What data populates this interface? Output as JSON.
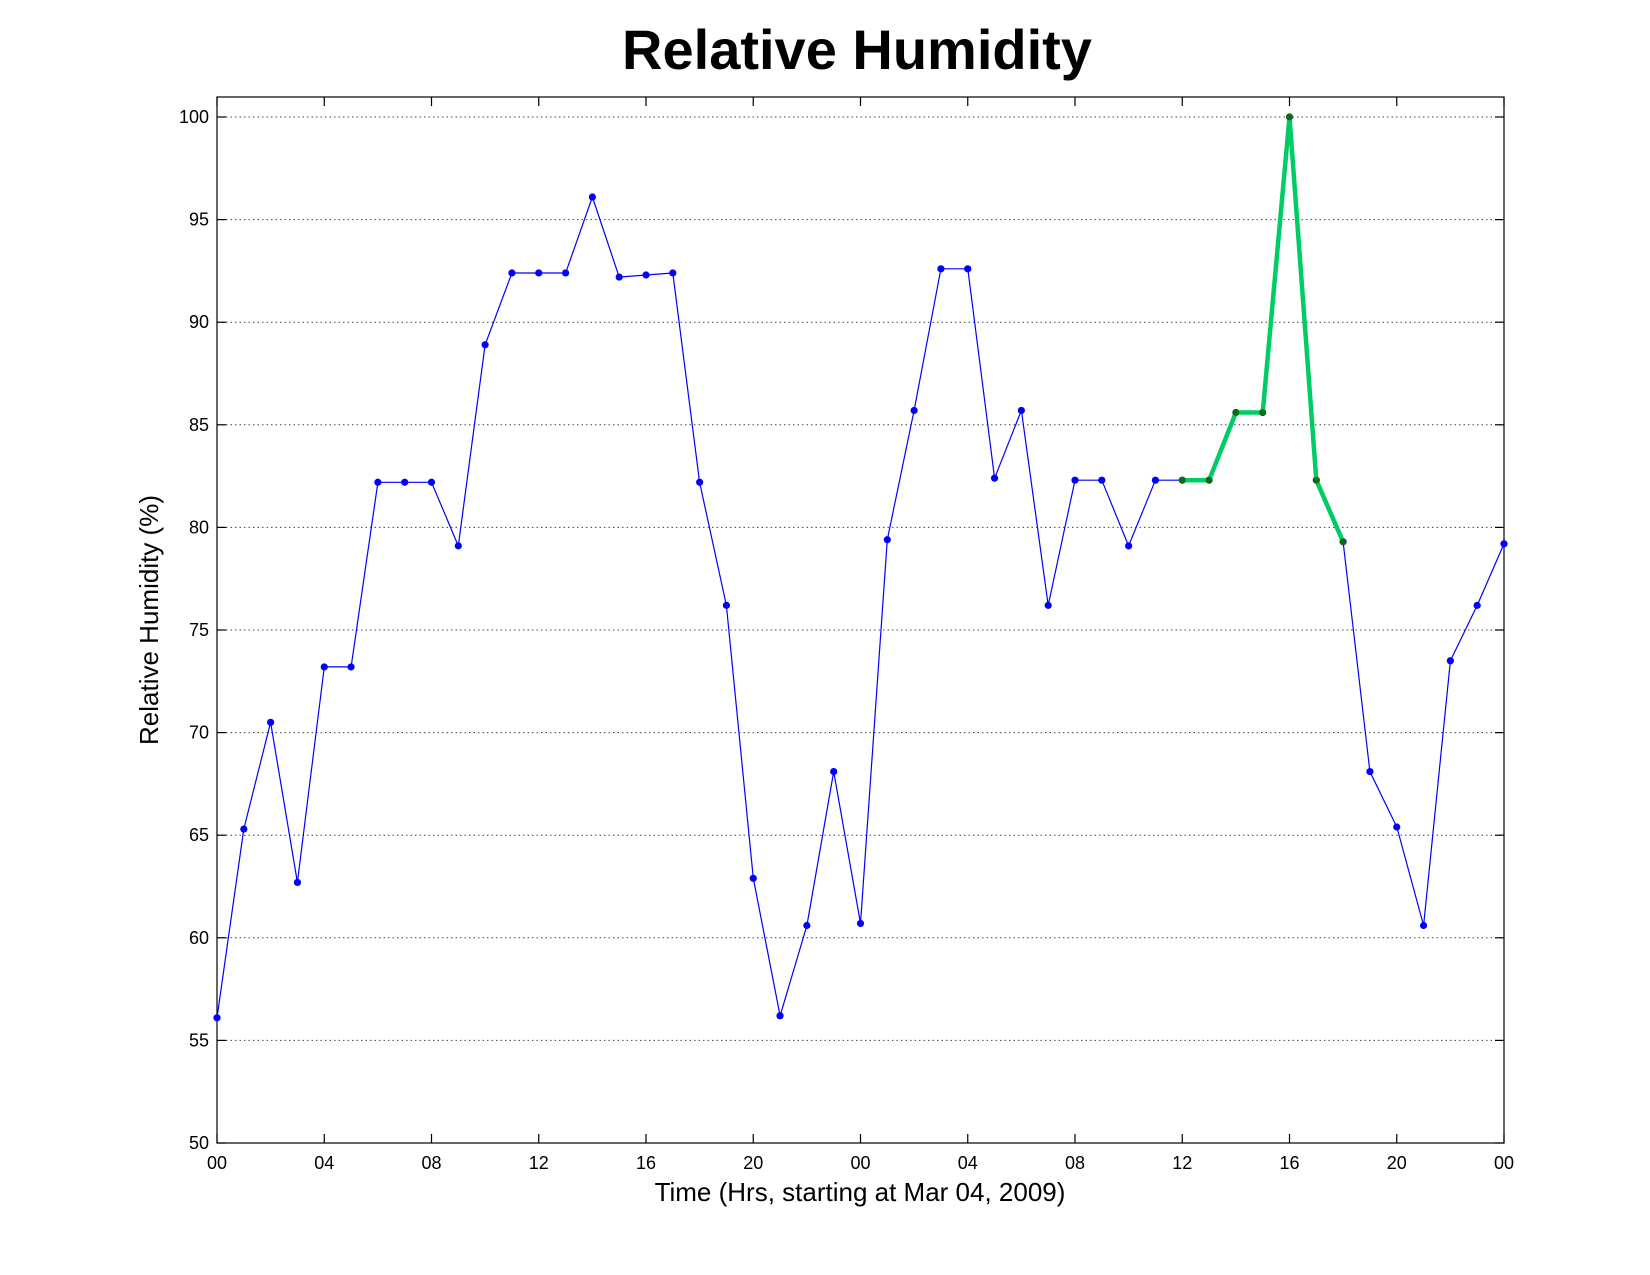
{
  "chart_data": {
    "type": "line",
    "title": "Relative Humidity",
    "xlabel": "Time (Hrs, starting at Mar 04, 2009)",
    "ylabel": "Relative Humidity (%)",
    "ylim": [
      50,
      100
    ],
    "xlim": [
      0,
      48
    ],
    "yticks": [
      50,
      55,
      60,
      65,
      70,
      75,
      80,
      85,
      90,
      95,
      100
    ],
    "xticks": [
      {
        "x": 0,
        "label": "00"
      },
      {
        "x": 4,
        "label": "04"
      },
      {
        "x": 8,
        "label": "08"
      },
      {
        "x": 12,
        "label": "12"
      },
      {
        "x": 16,
        "label": "16"
      },
      {
        "x": 20,
        "label": "20"
      },
      {
        "x": 24,
        "label": "00"
      },
      {
        "x": 28,
        "label": "04"
      },
      {
        "x": 32,
        "label": "08"
      },
      {
        "x": 36,
        "label": "12"
      },
      {
        "x": 40,
        "label": "16"
      },
      {
        "x": 44,
        "label": "20"
      },
      {
        "x": 48,
        "label": "00"
      }
    ],
    "grid": "horizontal dotted",
    "series": [
      {
        "color": "#0000ff",
        "x": [
          0,
          1,
          2,
          3,
          4,
          5,
          6,
          7,
          8,
          9,
          10,
          11,
          12,
          13,
          14,
          15,
          16,
          17,
          18,
          19,
          20,
          21,
          22,
          23,
          24,
          25,
          26,
          27,
          28,
          29,
          30,
          31,
          32,
          33,
          34,
          35,
          36,
          37,
          38,
          39,
          40,
          41,
          42,
          43,
          44,
          45,
          46,
          47,
          48
        ],
        "values": [
          56.1,
          65.3,
          70.5,
          62.7,
          73.2,
          73.2,
          82.2,
          82.2,
          82.2,
          79.1,
          88.9,
          92.4,
          92.4,
          92.4,
          96.1,
          92.2,
          92.3,
          92.4,
          82.2,
          76.2,
          62.9,
          56.2,
          60.6,
          68.1,
          60.7,
          79.4,
          85.7,
          92.6,
          92.6,
          82.4,
          85.7,
          76.2,
          82.3,
          82.3,
          79.1,
          82.3,
          82.3,
          82.3,
          85.6,
          85.6,
          100.0,
          82.3,
          79.3,
          68.1,
          65.4,
          60.6,
          73.5,
          76.2,
          79.2
        ]
      },
      {
        "color": "#00cc66",
        "marker_color": "#0a6e0a",
        "x": [
          36,
          37,
          38,
          39,
          40,
          41,
          42
        ],
        "values": [
          82.3,
          82.3,
          85.6,
          85.6,
          100.0,
          82.3,
          79.3
        ]
      }
    ]
  }
}
